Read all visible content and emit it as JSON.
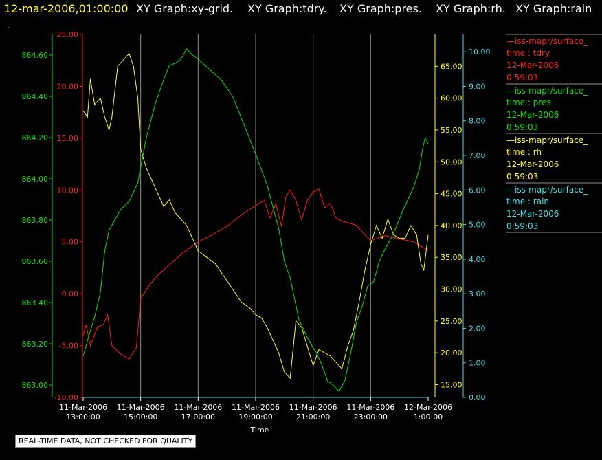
{
  "header": {
    "timestamp": "12-mar-2006,01:00:00",
    "titles": [
      "XY Graph:xy-grid.",
      "XY Graph:tdry.",
      "XY Graph:pres.",
      "XY Graph:rh.",
      "XY Graph:rain"
    ]
  },
  "notice": "REAL-TIME DATA, NOT CHECKED FOR QUALITY",
  "dot": ".",
  "colors": {
    "tdry": "#ff2020",
    "pres": "#10e010",
    "rh": "#ffff20",
    "rain": "#40e0e0",
    "grid": "#8c8c8c",
    "header_timestamp": "#ffff30"
  },
  "chart_data": {
    "type": "line",
    "xlabel": "Time",
    "x_ticks": [
      [
        "11-Mar-2006",
        "13:00:00"
      ],
      [
        "11-Mar-2006",
        "15:00:00"
      ],
      [
        "11-Mar-2006",
        "17:00:00"
      ],
      [
        "11-Mar-2006",
        "19:00:00"
      ],
      [
        "11-Mar-2006",
        "21:00:00"
      ],
      [
        "11-Mar-2006",
        "23:00:00"
      ],
      [
        "12-Mar-2006",
        "1:00:00"
      ]
    ],
    "x_hours": [
      13,
      15,
      17,
      19,
      21,
      23,
      25
    ],
    "xlim_hours": [
      13,
      25
    ],
    "axes": {
      "tdry": {
        "ylim": [
          -10,
          25
        ],
        "ticks": [
          "-10.00",
          "-5.00",
          "0.00",
          "5.00",
          "10.00",
          "15.00",
          "20.00",
          "25.00"
        ]
      },
      "pres": {
        "ylim": [
          862.94,
          864.7
        ],
        "ticks": [
          "863.00",
          "863.20",
          "863.40",
          "863.60",
          "863.80",
          "864.00",
          "864.20",
          "864.40",
          "864.60"
        ]
      },
      "rh": {
        "ylim": [
          13,
          70
        ],
        "ticks": [
          "15.00",
          "20.00",
          "25.00",
          "30.00",
          "35.00",
          "40.00",
          "45.00",
          "50.00",
          "55.00",
          "60.00",
          "65.00"
        ]
      },
      "rain": {
        "ylim": [
          0,
          10.5
        ],
        "ticks": [
          "0.00",
          "1.00",
          "2.00",
          "3.00",
          "4.00",
          "5.00",
          "6.00",
          "7.00",
          "8.00",
          "9.00",
          "10.00"
        ]
      }
    },
    "series": [
      {
        "key": "tdry",
        "x": [
          13.0,
          13.1,
          13.25,
          13.5,
          13.7,
          13.85,
          14.0,
          14.3,
          14.6,
          14.85,
          15.0,
          15.3,
          15.6,
          16.0,
          16.5,
          17.0,
          17.5,
          18.0,
          18.5,
          19.0,
          19.3,
          19.5,
          19.7,
          19.9,
          20.05,
          20.2,
          20.4,
          20.6,
          20.8,
          21.0,
          21.2,
          21.4,
          21.6,
          21.8,
          22.0,
          22.5,
          23.0,
          23.5,
          24.0,
          24.5,
          24.8,
          25.0
        ],
        "y": [
          -4.0,
          -3.0,
          -5.0,
          -3.2,
          -3.0,
          -2.0,
          -5.0,
          -5.8,
          -6.3,
          -5.2,
          -0.5,
          0.8,
          1.8,
          2.8,
          4.0,
          5.0,
          5.7,
          6.5,
          7.6,
          8.5,
          9.0,
          7.3,
          8.7,
          6.5,
          9.3,
          10.0,
          9.0,
          7.1,
          9.0,
          9.8,
          10.1,
          8.3,
          8.7,
          7.3,
          7.0,
          6.6,
          5.1,
          5.6,
          5.3,
          5.0,
          4.5,
          4.2
        ]
      },
      {
        "key": "pres",
        "x": [
          13.0,
          13.2,
          13.4,
          13.6,
          13.75,
          13.9,
          14.1,
          14.3,
          14.6,
          14.9,
          15.2,
          15.5,
          15.8,
          16.0,
          16.2,
          16.4,
          16.6,
          16.8,
          17.0,
          17.4,
          17.8,
          18.2,
          18.6,
          19.0,
          19.4,
          19.8,
          20.0,
          20.2,
          20.5,
          20.8,
          21.0,
          21.1,
          21.3,
          21.5,
          21.7,
          21.9,
          22.1,
          22.3,
          22.5,
          22.7,
          22.9,
          23.1,
          23.3,
          23.5,
          23.7,
          23.9,
          24.1,
          24.3,
          24.5,
          24.7,
          24.8,
          24.9,
          25.0
        ],
        "y": [
          863.14,
          863.24,
          863.33,
          863.45,
          863.65,
          863.75,
          863.8,
          863.85,
          863.89,
          863.98,
          864.2,
          864.36,
          864.48,
          864.55,
          864.56,
          864.58,
          864.63,
          864.6,
          864.58,
          864.53,
          864.48,
          864.4,
          864.26,
          864.12,
          863.97,
          863.76,
          863.6,
          863.52,
          863.32,
          863.23,
          863.18,
          863.16,
          863.1,
          863.02,
          863.0,
          862.97,
          863.02,
          863.15,
          863.3,
          863.38,
          863.48,
          863.5,
          863.6,
          863.66,
          863.71,
          863.77,
          863.84,
          863.9,
          863.96,
          864.05,
          864.14,
          864.2,
          864.17
        ]
      },
      {
        "key": "rh",
        "x": [
          13.0,
          13.15,
          13.25,
          13.4,
          13.6,
          13.75,
          13.9,
          14.0,
          14.2,
          14.4,
          14.6,
          14.75,
          14.9,
          15.0,
          15.2,
          15.5,
          15.8,
          16.0,
          16.2,
          16.4,
          16.6,
          16.8,
          17.0,
          17.3,
          17.6,
          17.9,
          18.2,
          18.5,
          18.8,
          19.0,
          19.2,
          19.4,
          19.6,
          19.8,
          20.0,
          20.2,
          20.4,
          20.6,
          20.8,
          21.0,
          21.2,
          21.4,
          21.6,
          21.8,
          22.0,
          22.2,
          22.4,
          22.6,
          22.8,
          23.0,
          23.2,
          23.4,
          23.6,
          23.8,
          24.0,
          24.2,
          24.4,
          24.6,
          24.75,
          24.85,
          25.0
        ],
        "y": [
          58.0,
          57.0,
          63.0,
          59.0,
          60.0,
          57.0,
          55.0,
          57.0,
          65.0,
          66.0,
          67.0,
          65.0,
          60.0,
          52.0,
          49.0,
          46.0,
          43.0,
          44.0,
          42.0,
          41.0,
          40.0,
          38.0,
          36.0,
          35.0,
          34.0,
          32.0,
          30.0,
          28.0,
          27.0,
          26.0,
          25.5,
          24.0,
          22.0,
          20.0,
          17.0,
          16.0,
          25.0,
          24.0,
          21.0,
          18.0,
          20.5,
          20.0,
          19.5,
          18.5,
          17.5,
          21.0,
          23.5,
          28.0,
          33.0,
          37.0,
          40.0,
          38.0,
          41.0,
          38.5,
          38.0,
          38.0,
          40.0,
          38.5,
          34.0,
          33.0,
          38.5
        ]
      },
      {
        "key": "rain",
        "x": [
          13.0,
          25.0
        ],
        "y": [
          0.0,
          0.0
        ]
      }
    ],
    "legend": {
      "placement": "right",
      "entries": [
        {
          "key": "tdry",
          "source": "—iss-mapr/surface_",
          "label": "time : tdry",
          "date": "12-Mar-2006",
          "time": "0:59:03"
        },
        {
          "key": "pres",
          "source": "—iss-mapr/surface_",
          "label": "time : pres",
          "date": "12-Mar-2006",
          "time": "0:59:03"
        },
        {
          "key": "rh",
          "source": "—iss-mapr/surface_",
          "label": "time : rh",
          "date": "12-Mar-2006",
          "time": "0:59:03"
        },
        {
          "key": "rain",
          "source": "—iss-mapr/surface_",
          "label": "time : rain",
          "date": "12-Mar-2006",
          "time": "0:59:03"
        }
      ]
    }
  }
}
